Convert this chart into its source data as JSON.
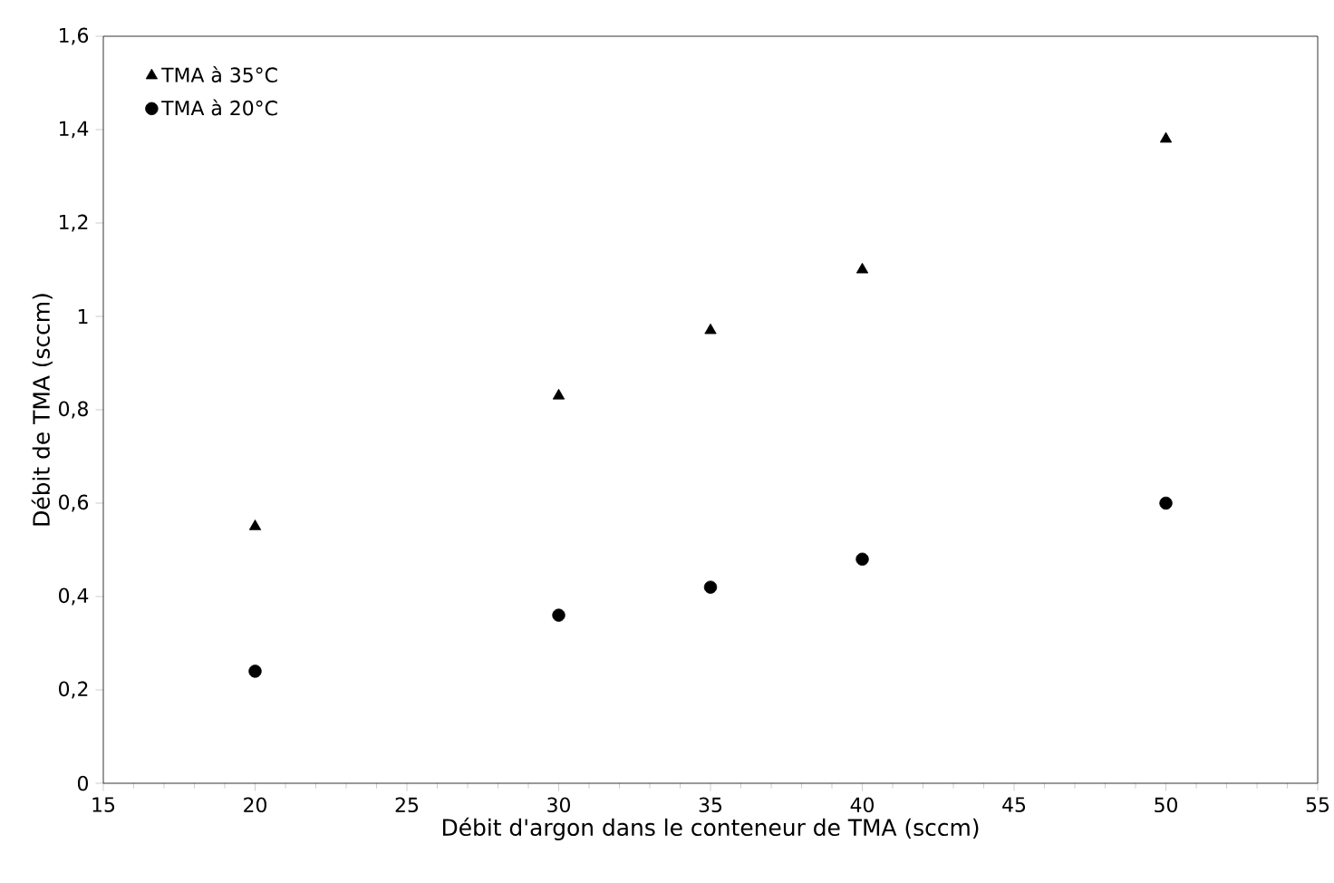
{
  "chart_data": {
    "type": "scatter",
    "xlabel": "Débit d'argon dans le conteneur de TMA (sccm)",
    "ylabel": "Débit de TMA (sccm)",
    "x": [
      20,
      30,
      35,
      40,
      50
    ],
    "series": [
      {
        "name": "TMA à 35°C",
        "color": "#000000",
        "marker": "triangle",
        "values": [
          0.55,
          0.83,
          0.97,
          1.1,
          1.38
        ]
      },
      {
        "name": "TMA à 20°C",
        "color": "#000000",
        "marker": "circle",
        "values": [
          0.24,
          0.36,
          0.42,
          0.48,
          0.6
        ]
      }
    ],
    "xlim": [
      15,
      55
    ],
    "xticks": [
      15,
      20,
      25,
      30,
      35,
      40,
      45,
      50,
      55
    ],
    "ylim": [
      0,
      1.6
    ],
    "yticks": [
      0,
      {
        "value": 0.2,
        "label": "0,2"
      },
      {
        "value": 0.4,
        "label": "0,4"
      },
      {
        "value": 0.6,
        "label": "0,6"
      },
      {
        "value": 0.8,
        "label": "0,8"
      },
      1,
      {
        "value": 1.2,
        "label": "1,2"
      },
      {
        "value": 1.4,
        "label": "1,4"
      },
      {
        "value": 1.6,
        "label": "1,6"
      }
    ],
    "grid": false,
    "legend": "top left"
  }
}
